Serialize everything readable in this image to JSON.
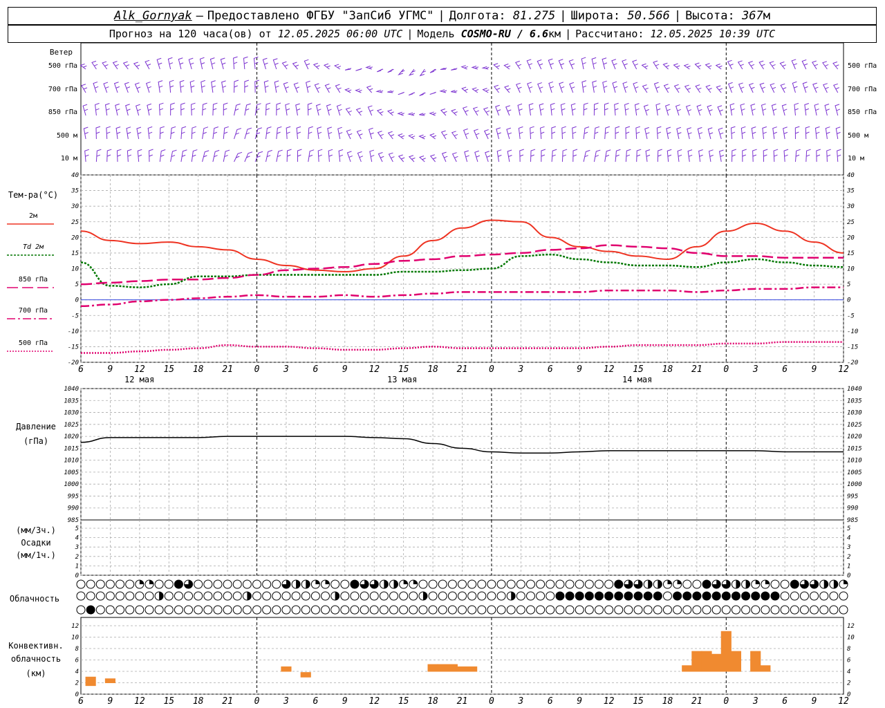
{
  "header": {
    "station": "Alk_Gornyak",
    "provider": "Предоставлено ФГБУ \"ЗапСиб УГМС\"",
    "lon_label": "Долгота:",
    "lon": "81.275",
    "lat_label": "Широта:",
    "lat": "50.566",
    "alt_label": "Высота:",
    "alt": "367",
    "alt_unit": "м",
    "forecast_label": "Прогноз на 120 часа(ов) от",
    "forecast_from": "12.05.2025 06:00 UTC",
    "model_label": "Модель",
    "model": "COSMO-RU / 6.6",
    "model_unit": "км",
    "calc_label": "Рассчитано:",
    "calc_time": "12.05.2025 10:39 UTC"
  },
  "colors": {
    "t2m": "#ee3322",
    "td2m": "#007700",
    "t850": "#e0006e",
    "t700": "#e0006e",
    "t500": "#e0006e",
    "wind": "#7a30d0",
    "pressure": "#000000",
    "convective": "#f08a30",
    "grid": "#aaaaaa"
  },
  "wind_panel": {
    "title": "Ветер",
    "levels": [
      "500 гПа",
      "700 гПа",
      "850 гПа",
      "500 м",
      "10  м"
    ],
    "icon": "wind-barb-icon"
  },
  "temp_panel": {
    "title": "Тем-ра(°С)",
    "legend": [
      {
        "label": "2м",
        "key": "t2m",
        "dash": ""
      },
      {
        "label": "Td 2м",
        "key": "td2m",
        "dash": "3,2"
      },
      {
        "label": "850 гПа",
        "key": "t850",
        "dash": "16,6"
      },
      {
        "label": "700 гПа",
        "key": "t700",
        "dash": "12,4,3,4"
      },
      {
        "label": "500 гПа",
        "key": "t500",
        "dash": "2,2"
      }
    ],
    "yticks": [
      40,
      35,
      30,
      25,
      20,
      15,
      10,
      5,
      0,
      -5,
      -10,
      -15,
      -20
    ]
  },
  "time_axis": {
    "hours": [
      "6",
      "9",
      "12",
      "15",
      "18",
      "21",
      "0",
      "3",
      "6",
      "9",
      "12",
      "15",
      "18",
      "21",
      "0",
      "3",
      "6",
      "9",
      "12",
      "15",
      "18",
      "21",
      "0",
      "3",
      "6",
      "9",
      "12"
    ],
    "days": [
      "12 мая",
      "13 мая",
      "14 мая"
    ]
  },
  "pressure_panel": {
    "title": "Давление",
    "unit": "(гПа)",
    "yticks": [
      1040,
      1035,
      1030,
      1025,
      1020,
      1015,
      1010,
      1005,
      1000,
      995,
      990,
      985
    ]
  },
  "precip_panel": {
    "title": "Осадки",
    "unit_top": "(мм/3ч.)",
    "unit_bottom": "(мм/1ч.)",
    "yticks": [
      5,
      4,
      3,
      2,
      1,
      0
    ]
  },
  "cloud_panel": {
    "title": "Облачность",
    "icon": "cloud-cover-icon"
  },
  "conv_panel": {
    "title_line1": "Конвективн.",
    "title_line2": "облачность",
    "unit": "(км)",
    "yticks": [
      12,
      10,
      8,
      6,
      4,
      2,
      0
    ]
  },
  "chart_data": [
    {
      "type": "line",
      "panel": "temperature",
      "x_hours_from_start": [
        0,
        3,
        6,
        9,
        12,
        15,
        18,
        21,
        24,
        27,
        30,
        33,
        36,
        39,
        42,
        45,
        48,
        51,
        54,
        57,
        60,
        63,
        66,
        69,
        72,
        75,
        78
      ],
      "ylim": [
        -20,
        40
      ],
      "series": [
        {
          "name": "2м",
          "values": [
            22,
            19,
            18,
            18.5,
            17,
            16,
            13,
            11,
            9.5,
            9,
            10,
            14,
            19,
            23,
            25.5,
            25,
            20,
            17,
            15.5,
            14,
            13,
            17,
            22,
            24.5,
            22,
            18.5,
            15
          ]
        },
        {
          "name": "Td 2м",
          "values": [
            12,
            4.5,
            4,
            5,
            7.5,
            7.5,
            8,
            8,
            8,
            8,
            8,
            9,
            9,
            9.5,
            10,
            14,
            14.5,
            13,
            12,
            11,
            11,
            10.5,
            12,
            13,
            12,
            11,
            10.5
          ]
        },
        {
          "name": "850 гПа",
          "values": [
            5,
            5.5,
            6,
            6.5,
            6.5,
            7,
            8,
            9.5,
            10,
            10.5,
            11.5,
            12.5,
            13,
            14,
            14.5,
            15,
            16,
            16.5,
            17.5,
            17,
            16.5,
            15,
            14,
            14,
            13.5,
            13.5,
            13.5
          ]
        },
        {
          "name": "700 гПа",
          "values": [
            -2,
            -1.5,
            -0.5,
            0,
            0.5,
            1,
            1.5,
            1,
            1,
            1.5,
            1,
            1.5,
            2,
            2.5,
            2.5,
            2.5,
            2.5,
            2.5,
            3,
            3,
            3,
            2.5,
            3,
            3.5,
            3.5,
            4,
            4
          ]
        },
        {
          "name": "500 гПа",
          "values": [
            -17,
            -17,
            -16.5,
            -16,
            -15.5,
            -14.5,
            -15,
            -15,
            -15.5,
            -16,
            -16,
            -15.5,
            -15,
            -15.5,
            -15.5,
            -15.5,
            -15.5,
            -15.5,
            -15,
            -14.5,
            -14.5,
            -14.5,
            -14,
            -14,
            -13.5,
            -13.5,
            -13.5
          ]
        }
      ]
    },
    {
      "type": "line",
      "panel": "pressure",
      "x_hours_from_start": [
        0,
        3,
        6,
        9,
        12,
        15,
        18,
        21,
        24,
        27,
        30,
        33,
        36,
        39,
        42,
        45,
        48,
        51,
        54,
        57,
        60,
        63,
        66,
        69,
        72,
        75,
        78
      ],
      "ylim": [
        985,
        1040
      ],
      "series": [
        {
          "name": "Давление",
          "values": [
            1017.5,
            1019.5,
            1019.5,
            1019.5,
            1019.5,
            1020,
            1020,
            1020,
            1020,
            1020,
            1019.5,
            1019,
            1017,
            1015,
            1013.5,
            1013,
            1013,
            1013.5,
            1014,
            1014,
            1014,
            1014,
            1014,
            1014,
            1013.5,
            1013.5,
            1013.5
          ]
        }
      ]
    }
  ],
  "conv_bars": [
    {
      "x0": 0.5,
      "x1": 1.5,
      "base": 1.5,
      "top": 3
    },
    {
      "x0": 2.5,
      "x1": 3.5,
      "base": 2,
      "top": 2.7
    },
    {
      "x0": 20.5,
      "x1": 21.5,
      "base": 4,
      "top": 4.8
    },
    {
      "x0": 22.5,
      "x1": 23.5,
      "base": 3,
      "top": 3.8
    },
    {
      "x0": 35.5,
      "x1": 36.5,
      "base": 4,
      "top": 5.2
    },
    {
      "x0": 36.5,
      "x1": 38.5,
      "base": 4,
      "top": 5.2
    },
    {
      "x0": 38.5,
      "x1": 40.5,
      "base": 4,
      "top": 4.8
    },
    {
      "x0": 61.5,
      "x1": 62.5,
      "base": 4,
      "top": 5
    },
    {
      "x0": 62.5,
      "x1": 63.5,
      "base": 4,
      "top": 7.5
    },
    {
      "x0": 63.5,
      "x1": 64.5,
      "base": 4,
      "top": 7.5
    },
    {
      "x0": 64.5,
      "x1": 65.5,
      "base": 4,
      "top": 7
    },
    {
      "x0": 65.5,
      "x1": 66.5,
      "base": 4,
      "top": 11
    },
    {
      "x0": 66.5,
      "x1": 67.5,
      "base": 4,
      "top": 7.5
    },
    {
      "x0": 68.5,
      "x1": 69.5,
      "base": 4,
      "top": 7.5
    },
    {
      "x0": 69.5,
      "x1": 70.5,
      "base": 4,
      "top": 5
    }
  ]
}
